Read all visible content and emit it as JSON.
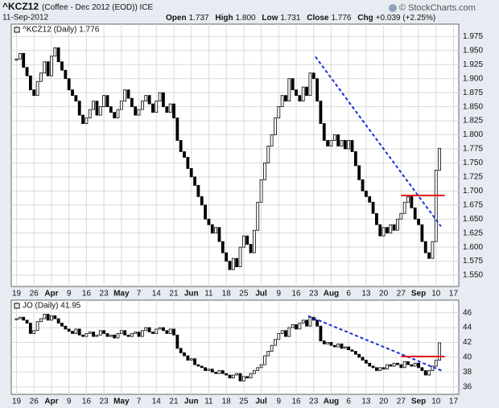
{
  "chart_data": [
    {
      "type": "candlestick",
      "title": "^KCZ12",
      "subtitle": "(Coffee - Dec 2012 (EOD)) ICE",
      "date": "11-Sep-2012",
      "stats": [
        {
          "label": "Open",
          "value": "1.737"
        },
        {
          "label": "High",
          "value": "1.800"
        },
        {
          "label": "Low",
          "value": "1.731"
        },
        {
          "label": "Close",
          "value": "1.776"
        },
        {
          "label": "Chg",
          "value": "+0.039 (+2.25%)"
        }
      ],
      "source": "© StockCharts.com",
      "grid": true,
      "xlim": [
        -1.5,
        126.5
      ],
      "ylim": [
        1.53,
        1.997
      ],
      "yticks": [
        {
          "value": 1.55,
          "label": "1.550"
        },
        1.575,
        {
          "value": 1.6,
          "label": "1.600"
        },
        1.625,
        {
          "value": 1.65,
          "label": "1.650"
        },
        1.675,
        {
          "value": 1.7,
          "label": "1.700"
        },
        1.725,
        {
          "value": 1.75,
          "label": "1.750"
        },
        1.775,
        {
          "value": 1.8,
          "label": "1.800"
        },
        1.825,
        {
          "value": 1.85,
          "label": "1.850"
        },
        1.875,
        {
          "value": 1.9,
          "label": "1.900"
        },
        1.925,
        {
          "value": 1.95,
          "label": "1.950"
        },
        1.975
      ],
      "xticks": [
        {
          "value": 0,
          "label": "19"
        },
        {
          "value": 5,
          "label": "26"
        },
        {
          "value": 10,
          "label": "Apr"
        },
        {
          "value": 15,
          "label": "9"
        },
        {
          "value": 20,
          "label": "16"
        },
        {
          "value": 25,
          "label": "23"
        },
        {
          "value": 30,
          "label": "May"
        },
        {
          "value": 35,
          "label": "7"
        },
        {
          "value": 40,
          "label": "14"
        },
        {
          "value": 45,
          "label": "21"
        },
        {
          "value": 50,
          "label": "Jun"
        },
        {
          "value": 55,
          "label": "11"
        },
        {
          "value": 60,
          "label": "18"
        },
        {
          "value": 65,
          "label": "25"
        },
        {
          "value": 70,
          "label": "Jul"
        },
        {
          "value": 75,
          "label": "9"
        },
        {
          "value": 80,
          "label": "16"
        },
        {
          "value": 85,
          "label": "23"
        },
        {
          "value": 90,
          "label": "Aug"
        },
        {
          "value": 95,
          "label": "6"
        },
        {
          "value": 100,
          "label": "13"
        },
        {
          "value": 105,
          "label": "20"
        },
        {
          "value": 110,
          "label": "27"
        },
        {
          "value": 115,
          "label": "Sep"
        },
        {
          "value": 120,
          "label": "10"
        },
        {
          "value": 125,
          "label": "17"
        }
      ],
      "x": [
        0,
        1,
        2,
        3,
        4,
        5,
        6,
        7,
        8,
        9,
        10,
        11,
        12,
        13,
        14,
        15,
        16,
        17,
        18,
        19,
        20,
        21,
        22,
        23,
        24,
        25,
        26,
        27,
        28,
        29,
        30,
        31,
        32,
        33,
        34,
        35,
        36,
        37,
        38,
        39,
        40,
        41,
        42,
        43,
        44,
        45,
        46,
        47,
        48,
        49,
        50,
        51,
        52,
        53,
        54,
        55,
        56,
        57,
        58,
        59,
        60,
        61,
        62,
        63,
        64,
        65,
        66,
        67,
        68,
        69,
        70,
        71,
        72,
        73,
        74,
        75,
        76,
        77,
        78,
        79,
        80,
        81,
        82,
        83,
        84,
        85,
        86,
        87,
        88,
        89,
        90,
        91,
        92,
        93,
        94,
        95,
        96,
        97,
        98,
        99,
        100,
        101,
        102,
        103,
        104,
        105,
        106,
        107,
        108,
        109,
        110,
        111,
        112,
        113,
        114,
        115,
        116,
        117,
        118,
        119,
        120,
        121
      ],
      "series": [
        {
          "name": "^KCZ12 (Daily) 1.776",
          "color": "#000000",
          "values": [
            1.935,
            1.945,
            1.92,
            1.905,
            1.88,
            1.87,
            1.895,
            1.91,
            1.93,
            1.905,
            1.94,
            1.955,
            1.93,
            1.915,
            1.9,
            1.88,
            1.87,
            1.86,
            1.835,
            1.82,
            1.83,
            1.845,
            1.86,
            1.835,
            1.85,
            1.87,
            1.85,
            1.84,
            1.83,
            1.845,
            1.86,
            1.88,
            1.865,
            1.85,
            1.835,
            1.845,
            1.86,
            1.87,
            1.855,
            1.84,
            1.86,
            1.875,
            1.85,
            1.84,
            1.855,
            1.83,
            1.79,
            1.77,
            1.76,
            1.74,
            1.725,
            1.71,
            1.69,
            1.675,
            1.65,
            1.64,
            1.625,
            1.635,
            1.61,
            1.59,
            1.575,
            1.56,
            1.58,
            1.565,
            1.6,
            1.62,
            1.605,
            1.59,
            1.63,
            1.68,
            1.72,
            1.75,
            1.78,
            1.8,
            1.83,
            1.85,
            1.87,
            1.86,
            1.9,
            1.88,
            1.87,
            1.86,
            1.885,
            1.87,
            1.91,
            1.9,
            1.86,
            1.82,
            1.79,
            1.78,
            1.79,
            1.8,
            1.78,
            1.79,
            1.775,
            1.79,
            1.77,
            1.745,
            1.72,
            1.7,
            1.69,
            1.68,
            1.66,
            1.64,
            1.62,
            1.635,
            1.625,
            1.64,
            1.63,
            1.65,
            1.66,
            1.68,
            1.69,
            1.67,
            1.65,
            1.64,
            1.61,
            1.59,
            1.58,
            1.61,
            1.737,
            1.776
          ]
        }
      ],
      "trendlines": [
        {
          "color": "#1a2fd8",
          "x": [
            85.5,
            121.4
          ],
          "y": [
            1.939,
            1.637
          ]
        }
      ],
      "levels": [
        {
          "color": "#e01818",
          "x": [
            110,
            122.5
          ],
          "y": 1.692
        }
      ]
    },
    {
      "type": "candlestick",
      "grid": true,
      "xlim": [
        -1.5,
        126.5
      ],
      "ylim": [
        35.0,
        47.7
      ],
      "yticks": [
        36,
        38,
        40,
        42,
        44,
        46
      ],
      "xticks": [
        {
          "value": 0,
          "label": "19"
        },
        {
          "value": 5,
          "label": "26"
        },
        {
          "value": 10,
          "label": "Apr"
        },
        {
          "value": 15,
          "label": "9"
        },
        {
          "value": 20,
          "label": "16"
        },
        {
          "value": 25,
          "label": "23"
        },
        {
          "value": 30,
          "label": "May"
        },
        {
          "value": 35,
          "label": "7"
        },
        {
          "value": 40,
          "label": "14"
        },
        {
          "value": 45,
          "label": "21"
        },
        {
          "value": 50,
          "label": "Jun"
        },
        {
          "value": 55,
          "label": "11"
        },
        {
          "value": 60,
          "label": "18"
        },
        {
          "value": 65,
          "label": "25"
        },
        {
          "value": 70,
          "label": "Jul"
        },
        {
          "value": 75,
          "label": "9"
        },
        {
          "value": 80,
          "label": "16"
        },
        {
          "value": 85,
          "label": "23"
        },
        {
          "value": 90,
          "label": "Aug"
        },
        {
          "value": 95,
          "label": "6"
        },
        {
          "value": 100,
          "label": "13"
        },
        {
          "value": 105,
          "label": "20"
        },
        {
          "value": 110,
          "label": "27"
        },
        {
          "value": 115,
          "label": "Sep"
        },
        {
          "value": 120,
          "label": "10"
        },
        {
          "value": 125,
          "label": "17"
        }
      ],
      "x": [
        0,
        1,
        2,
        3,
        4,
        5,
        6,
        7,
        8,
        9,
        10,
        11,
        12,
        13,
        14,
        15,
        16,
        17,
        18,
        19,
        20,
        21,
        22,
        23,
        24,
        25,
        26,
        27,
        28,
        29,
        30,
        31,
        32,
        33,
        34,
        35,
        36,
        37,
        38,
        39,
        40,
        41,
        42,
        43,
        44,
        45,
        46,
        47,
        48,
        49,
        50,
        51,
        52,
        53,
        54,
        55,
        56,
        57,
        58,
        59,
        60,
        61,
        62,
        63,
        64,
        65,
        66,
        67,
        68,
        69,
        70,
        71,
        72,
        73,
        74,
        75,
        76,
        77,
        78,
        79,
        80,
        81,
        82,
        83,
        84,
        85,
        86,
        87,
        88,
        89,
        90,
        91,
        92,
        93,
        94,
        95,
        96,
        97,
        98,
        99,
        100,
        101,
        102,
        103,
        104,
        105,
        106,
        107,
        108,
        109,
        110,
        111,
        112,
        113,
        114,
        115,
        116,
        117,
        118,
        119,
        120,
        121
      ],
      "series": [
        {
          "name": "JO (Daily) 41.95",
          "color": "#000000",
          "values": [
            45.2,
            45.4,
            45.0,
            44.6,
            43.2,
            43.6,
            44.8,
            45.2,
            45.8,
            45.0,
            45.6,
            45.2,
            44.6,
            44.2,
            43.8,
            43.5,
            43.2,
            43.8,
            43.0,
            42.8,
            43.2,
            43.4,
            42.8,
            43.0,
            43.6,
            43.2,
            42.8,
            43.0,
            42.6,
            43.2,
            43.6,
            43.0,
            42.8,
            43.2,
            43.4,
            42.8,
            43.6,
            44.0,
            43.4,
            43.2,
            43.8,
            44.0,
            43.6,
            43.2,
            43.8,
            43.0,
            41.2,
            40.6,
            40.2,
            39.6,
            39.8,
            39.0,
            38.8,
            38.6,
            38.2,
            38.4,
            38.0,
            37.8,
            38.2,
            37.8,
            37.6,
            37.2,
            37.6,
            37.8,
            36.8,
            37.4,
            37.2,
            37.8,
            38.2,
            38.6,
            39.0,
            40.2,
            40.8,
            41.6,
            42.4,
            43.2,
            43.6,
            42.8,
            44.0,
            44.4,
            43.8,
            44.6,
            45.0,
            44.2,
            45.4,
            45.0,
            44.2,
            42.2,
            41.8,
            42.0,
            41.6,
            41.4,
            41.8,
            41.2,
            41.4,
            41.0,
            40.8,
            40.4,
            40.0,
            39.6,
            39.2,
            38.8,
            38.6,
            38.2,
            38.6,
            38.4,
            39.0,
            38.8,
            39.2,
            39.0,
            38.6,
            39.4,
            39.0,
            38.8,
            39.2,
            38.6,
            38.2,
            37.6,
            38.2,
            38.8,
            39.6,
            41.95
          ]
        }
      ],
      "trendlines": [
        {
          "color": "#1a2fd8",
          "x": [
            83.4,
            121.8
          ],
          "y": [
            45.57,
            38.15
          ]
        }
      ],
      "levels": [
        {
          "color": "#e01818",
          "x": [
            110,
            122.5
          ],
          "y": 40.1
        }
      ]
    }
  ]
}
